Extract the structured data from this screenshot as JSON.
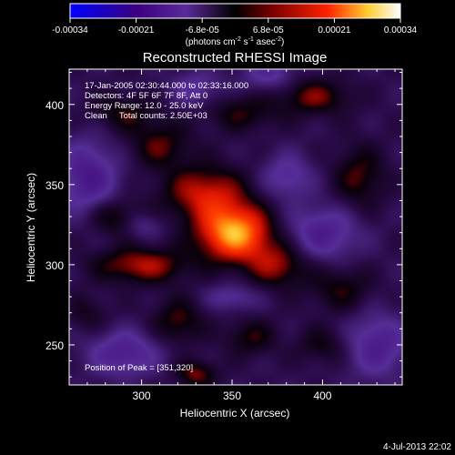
{
  "colorbar": {
    "ticks": [
      "-0.00034",
      "-0.00021",
      "-6.8e-05",
      "6.8e-05",
      "0.00021",
      "0.00034"
    ],
    "units_prefix": "(photons cm",
    "units_exp1": "-2",
    "units_mid": " s",
    "units_exp2": "-1",
    "units_mid2": " asec",
    "units_exp3": "-2",
    "units_suffix": ")",
    "colors": [
      "#0000ff",
      "#2a0060",
      "#5a2aa0",
      "#000000",
      "#7a0000",
      "#ff2000",
      "#ffff80",
      "#ffffff"
    ]
  },
  "chart_data": {
    "type": "heatmap",
    "title": "Reconstructed RHESSI Image",
    "xlabel": "Heliocentric X (arcsec)",
    "ylabel": "Heliocentric Y (arcsec)",
    "xlim": [
      260,
      444
    ],
    "ylim": [
      225,
      422
    ],
    "xticks": [
      300,
      350,
      400
    ],
    "yticks": [
      250,
      300,
      350,
      400
    ],
    "zlim": [
      -0.00034,
      0.00034
    ],
    "peak": [
      351,
      320
    ],
    "annotations": [
      "17-Jan-2005 02:30:44.000 to 02:33:16.000",
      "Detectors: 4F 5F 6F 7F 8F, Att 0",
      "Energy Range: 12.0 - 25.0 keV",
      "Clean     Total counts: 2.50E+03",
      "Position of Peak = [351,320]"
    ],
    "sources": [
      {
        "x": 351,
        "y": 320,
        "amp": 1.0,
        "sx": 14,
        "sy": 12
      },
      {
        "x": 335,
        "y": 345,
        "amp": 0.55,
        "sx": 16,
        "sy": 12
      },
      {
        "x": 375,
        "y": 300,
        "amp": 0.45,
        "sx": 12,
        "sy": 10
      },
      {
        "x": 300,
        "y": 300,
        "amp": 0.5,
        "sx": 18,
        "sy": 8
      },
      {
        "x": 285,
        "y": 330,
        "amp": 0.35,
        "sx": 10,
        "sy": 8
      },
      {
        "x": 310,
        "y": 375,
        "amp": 0.35,
        "sx": 12,
        "sy": 10
      },
      {
        "x": 395,
        "y": 405,
        "amp": 0.4,
        "sx": 14,
        "sy": 8
      },
      {
        "x": 420,
        "y": 355,
        "amp": 0.35,
        "sx": 10,
        "sy": 14
      },
      {
        "x": 355,
        "y": 395,
        "amp": 0.3,
        "sx": 14,
        "sy": 8
      },
      {
        "x": 290,
        "y": 395,
        "amp": 0.3,
        "sx": 12,
        "sy": 8
      },
      {
        "x": 410,
        "y": 285,
        "amp": 0.3,
        "sx": 12,
        "sy": 10
      },
      {
        "x": 320,
        "y": 265,
        "amp": 0.35,
        "sx": 10,
        "sy": 10
      },
      {
        "x": 360,
        "y": 255,
        "amp": 0.3,
        "sx": 10,
        "sy": 8
      },
      {
        "x": 330,
        "y": 232,
        "amp": 0.4,
        "sx": 8,
        "sy": 6
      },
      {
        "x": 400,
        "y": 250,
        "amp": 0.25,
        "sx": 10,
        "sy": 8
      },
      {
        "x": 270,
        "y": 270,
        "amp": 0.2,
        "sx": 8,
        "sy": 8
      },
      {
        "x": 270,
        "y": 355,
        "amp": -0.5,
        "sx": 12,
        "sy": 16
      },
      {
        "x": 290,
        "y": 245,
        "amp": -0.45,
        "sx": 14,
        "sy": 10
      },
      {
        "x": 400,
        "y": 320,
        "amp": -0.45,
        "sx": 14,
        "sy": 12
      },
      {
        "x": 380,
        "y": 355,
        "amp": -0.35,
        "sx": 10,
        "sy": 10
      },
      {
        "x": 430,
        "y": 250,
        "amp": -0.45,
        "sx": 12,
        "sy": 14
      },
      {
        "x": 370,
        "y": 420,
        "amp": -0.35,
        "sx": 10,
        "sy": 8
      },
      {
        "x": 330,
        "y": 410,
        "amp": -0.3,
        "sx": 10,
        "sy": 8
      },
      {
        "x": 350,
        "y": 280,
        "amp": -0.3,
        "sx": 10,
        "sy": 6
      },
      {
        "x": 300,
        "y": 325,
        "amp": -0.25,
        "sx": 8,
        "sy": 6
      }
    ]
  },
  "timestamp": "4-Jul-2013 22:02"
}
